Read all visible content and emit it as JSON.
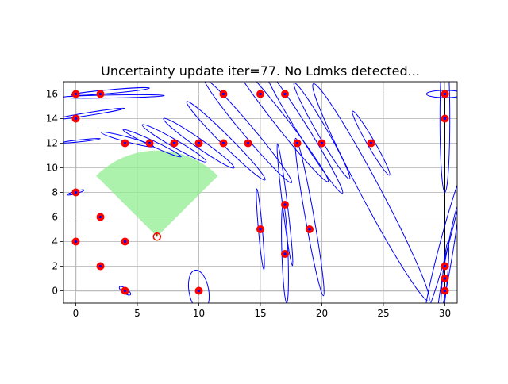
{
  "chart_data": {
    "type": "scatter",
    "title": "Uncertainty update iter=77. No Ldmks detected...",
    "xlabel": "",
    "ylabel": "",
    "xlim": [
      -1,
      31
    ],
    "ylim": [
      -1,
      17
    ],
    "grid": true,
    "legend": "none",
    "x_ticks": [
      0,
      5,
      10,
      15,
      20,
      25,
      30
    ],
    "y_ticks": [
      0,
      2,
      4,
      6,
      8,
      10,
      12,
      14,
      16
    ],
    "colors": {
      "landmark_fill": "#ff0000",
      "landmark_center": "#0000ff",
      "ellipse": "#0000ff",
      "fov": "#90ee90",
      "grid": "#b0b0b0",
      "map_wall": "#000000",
      "robot": "#ff0000"
    },
    "landmarks": [
      [
        0,
        16
      ],
      [
        2,
        16
      ],
      [
        12,
        16
      ],
      [
        15,
        16
      ],
      [
        17,
        16
      ],
      [
        30,
        16
      ],
      [
        0,
        14
      ],
      [
        30,
        14
      ],
      [
        4,
        12
      ],
      [
        6,
        12
      ],
      [
        8,
        12
      ],
      [
        10,
        12
      ],
      [
        12,
        12
      ],
      [
        14,
        12
      ],
      [
        18,
        12
      ],
      [
        20,
        12
      ],
      [
        24,
        12
      ],
      [
        0,
        8
      ],
      [
        2,
        6
      ],
      [
        17,
        7
      ],
      [
        0,
        4
      ],
      [
        4,
        4
      ],
      [
        15,
        5
      ],
      [
        19,
        5
      ],
      [
        2,
        2
      ],
      [
        17,
        3
      ],
      [
        30,
        2
      ],
      [
        30,
        1
      ],
      [
        4,
        0
      ],
      [
        10,
        0
      ],
      [
        30,
        0
      ]
    ],
    "robot": {
      "x": 6.6,
      "y": 4.4,
      "heading_deg": 90
    },
    "fov": {
      "origin": [
        6.6,
        4.4
      ],
      "radius": 7,
      "start_deg": 45,
      "end_deg": 135
    },
    "uncertainty_ellipses": [
      {
        "cx": 2.8,
        "cy": 16.2,
        "rx": 3.2,
        "ry": 0.15,
        "angle": 5
      },
      {
        "cx": 3.0,
        "cy": 15.8,
        "rx": 4.2,
        "ry": 0.12,
        "angle": 1
      },
      {
        "cx": 1.2,
        "cy": 14.4,
        "rx": 2.8,
        "ry": 0.12,
        "angle": 9
      },
      {
        "cx": 0.4,
        "cy": 12.2,
        "rx": 1.6,
        "ry": 0.08,
        "angle": 6
      },
      {
        "cx": 0.0,
        "cy": 8.0,
        "rx": 0.7,
        "ry": 0.1,
        "angle": 16
      },
      {
        "cx": 4.2,
        "cy": 12.3,
        "rx": 2.2,
        "ry": 0.2,
        "angle": -15
      },
      {
        "cx": 6.2,
        "cy": 12.0,
        "rx": 2.6,
        "ry": 0.22,
        "angle": -25
      },
      {
        "cx": 8.0,
        "cy": 12.0,
        "rx": 3.0,
        "ry": 0.3,
        "angle": -30
      },
      {
        "cx": 10.0,
        "cy": 12.0,
        "rx": 3.5,
        "ry": 0.35,
        "angle": -35
      },
      {
        "cx": 12.2,
        "cy": 12.2,
        "rx": 4.5,
        "ry": 0.4,
        "angle": -45
      },
      {
        "cx": 14.0,
        "cy": 13.0,
        "rx": 5.5,
        "ry": 0.45,
        "angle": -50
      },
      {
        "cx": 16.5,
        "cy": 14.0,
        "rx": 6.5,
        "ry": 0.5,
        "angle": -52
      },
      {
        "cx": 18.5,
        "cy": 13.0,
        "rx": 6.0,
        "ry": 0.45,
        "angle": -58
      },
      {
        "cx": 20.0,
        "cy": 13.0,
        "rx": 4.5,
        "ry": 0.4,
        "angle": -60
      },
      {
        "cx": 24.0,
        "cy": 12.0,
        "rx": 3.0,
        "ry": 0.3,
        "angle": -60
      },
      {
        "cx": 15.0,
        "cy": 5.0,
        "rx": 3.3,
        "ry": 0.16,
        "angle": -85
      },
      {
        "cx": 17.0,
        "cy": 7.0,
        "rx": 5.0,
        "ry": 0.2,
        "angle": -83
      },
      {
        "cx": 19.0,
        "cy": 6.0,
        "rx": 6.5,
        "ry": 0.35,
        "angle": -80
      },
      {
        "cx": 17.0,
        "cy": 3.0,
        "rx": 4.0,
        "ry": 0.25,
        "angle": -88
      },
      {
        "cx": 24.0,
        "cy": 8.0,
        "rx": 10.0,
        "ry": 0.8,
        "angle": -62
      },
      {
        "cx": 30.0,
        "cy": 14.0,
        "rx": 6.0,
        "ry": 0.4,
        "angle": -90
      },
      {
        "cx": 30.0,
        "cy": 4.0,
        "rx": 6.0,
        "ry": 0.35,
        "angle": 75
      },
      {
        "cx": 30.2,
        "cy": 2.0,
        "rx": 5.0,
        "ry": 0.25,
        "angle": 80
      },
      {
        "cx": 30.0,
        "cy": 1.0,
        "rx": 3.0,
        "ry": 0.2,
        "angle": 85
      },
      {
        "cx": 30.0,
        "cy": 16.0,
        "rx": 1.5,
        "ry": 0.3,
        "angle": 0
      },
      {
        "cx": 4.0,
        "cy": 0.0,
        "rx": 0.55,
        "ry": 0.2,
        "angle": -35
      },
      {
        "cx": 10.0,
        "cy": 0.0,
        "rx": 1.7,
        "ry": 0.8,
        "angle": -80
      }
    ]
  }
}
